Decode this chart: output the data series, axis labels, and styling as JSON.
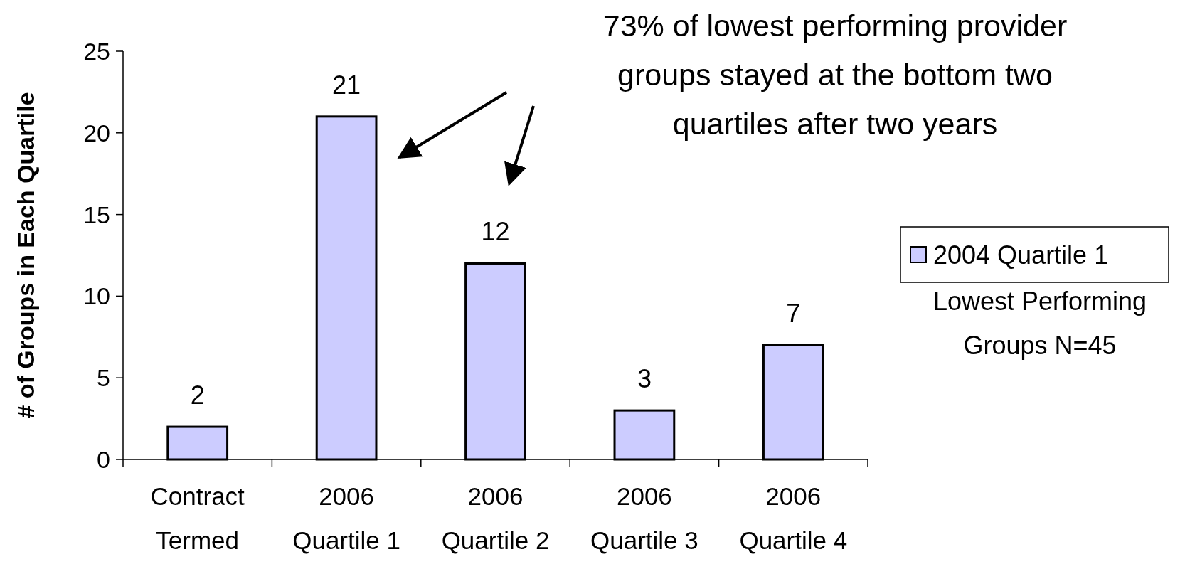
{
  "chart_data": {
    "type": "bar",
    "ylabel": "# of Groups in Each Quartile",
    "categories": [
      "Contract\nTermed",
      "2006\nQuartile 1",
      "2006\nQuartile 2",
      "2006\nQuartile 3",
      "2006\nQuartile 4"
    ],
    "series": [
      {
        "name": "2004 Quartile 1",
        "color": "#ccccff",
        "values": [
          2,
          21,
          12,
          3,
          7
        ]
      }
    ],
    "ylim": [
      0,
      25
    ],
    "yticks": [
      0,
      5,
      10,
      15,
      20,
      25
    ],
    "data_labels": true,
    "legend": "right",
    "grid": false,
    "annotations": [
      "73% of lowest performing provider\ngroups stayed at the bottom two\nquartiles after two years",
      "Lowest Performing\nGroups N=45"
    ]
  }
}
